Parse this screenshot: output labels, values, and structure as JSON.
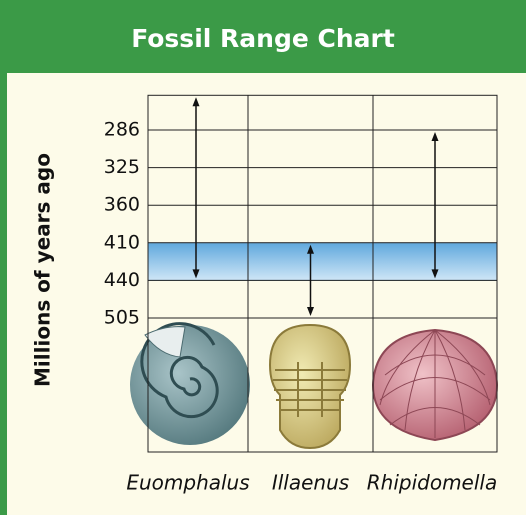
{
  "chart_data": {
    "type": "range",
    "title": "Fossil Range Chart",
    "ylabel": "Millions of years ago",
    "ylim": [
      250,
      505
    ],
    "yticks": [
      286,
      325,
      360,
      410,
      440,
      505
    ],
    "band": [
      410,
      440
    ],
    "band_color": "#8fc3e8",
    "grid": true,
    "series": [
      {
        "name": "Euomphalus",
        "values": [
          250,
          440
        ]
      },
      {
        "name": "Illaenus",
        "values": [
          410,
          505
        ]
      },
      {
        "name": "Rhipidomella",
        "values": [
          286,
          440
        ]
      }
    ]
  }
}
